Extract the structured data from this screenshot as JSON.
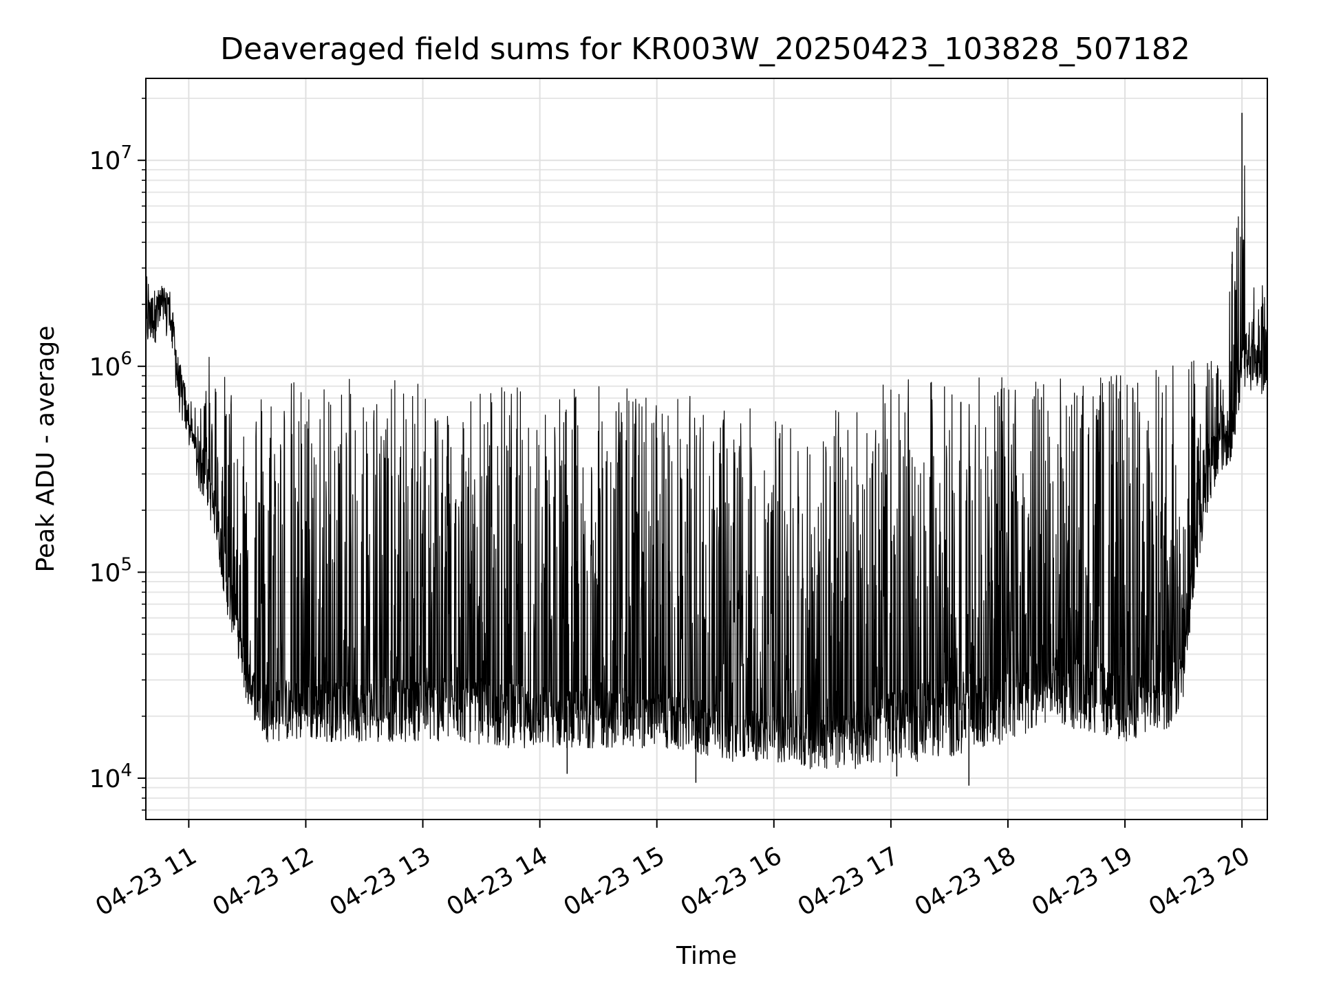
{
  "chart_data": {
    "type": "line",
    "title": "Deaveraged field sums for KR003W_20250423_103828_507182",
    "xlabel": "Time",
    "ylabel": "Peak ADU - average",
    "yscale": "log",
    "ylim": [
      6300,
      25000000
    ],
    "xlim": [
      "2025-04-23 10:38",
      "2025-04-23 20:13"
    ],
    "grid": true,
    "x_ticks": [
      "04-23 11",
      "04-23 12",
      "04-23 13",
      "04-23 14",
      "04-23 15",
      "04-23 16",
      "04-23 17",
      "04-23 18",
      "04-23 19",
      "04-23 20"
    ],
    "y_ticks": [
      {
        "value": 10000,
        "base": "10",
        "exp": "4"
      },
      {
        "value": 100000,
        "base": "10",
        "exp": "5"
      },
      {
        "value": 1000000,
        "base": "10",
        "exp": "6"
      },
      {
        "value": 10000000,
        "base": "10",
        "exp": "7"
      }
    ],
    "series": [
      {
        "line_color": "#000000",
        "envelope": {
          "x": [
            "10:38",
            "10:42",
            "10:50",
            "10:55",
            "11:00",
            "11:05",
            "11:10",
            "11:15",
            "11:20",
            "11:25",
            "11:30",
            "11:40",
            "11:50",
            "12:00",
            "12:20",
            "12:40",
            "13:00",
            "13:20",
            "13:40",
            "14:00",
            "14:20",
            "14:40",
            "15:00",
            "15:20",
            "15:40",
            "16:00",
            "16:20",
            "16:40",
            "17:00",
            "17:20",
            "17:40",
            "18:00",
            "18:20",
            "18:40",
            "19:00",
            "19:20",
            "19:25",
            "19:30",
            "19:35",
            "19:40",
            "19:45",
            "19:50",
            "19:55",
            "20:00",
            "20:05",
            "20:10",
            "20:13"
          ],
          "baseline": [
            1500000,
            1800000,
            1800000,
            800000,
            500000,
            350000,
            250000,
            170000,
            90000,
            50000,
            30000,
            25000,
            25000,
            25000,
            25000,
            25000,
            25000,
            25000,
            24000,
            23000,
            22000,
            22000,
            21000,
            20000,
            18000,
            17000,
            17000,
            18000,
            22000,
            24000,
            25000,
            27000,
            32000,
            30000,
            26000,
            25000,
            26000,
            40000,
            100000,
            200000,
            350000,
            450000,
            500000,
            1100000,
            1100000,
            1000000,
            950000
          ],
          "low": [
            1200000,
            1300000,
            1300000,
            600000,
            400000,
            250000,
            200000,
            120000,
            60000,
            40000,
            22000,
            15000,
            15000,
            15000,
            15000,
            15000,
            15000,
            15000,
            14000,
            14000,
            14000,
            14000,
            14000,
            13000,
            12000,
            12000,
            11000,
            11000,
            12000,
            12000,
            13000,
            15000,
            18000,
            17000,
            15000,
            17000,
            18000,
            25000,
            75000,
            150000,
            250000,
            300000,
            350000,
            800000,
            750000,
            700000,
            800000
          ],
          "high": [
            3000000,
            2500000,
            2500000,
            1100000,
            700000,
            600000,
            1200000,
            950000,
            920000,
            930000,
            920000,
            930000,
            930000,
            900000,
            880000,
            870000,
            860000,
            840000,
            850000,
            810000,
            800000,
            820000,
            790000,
            730000,
            650000,
            600000,
            550000,
            720000,
            850000,
            880000,
            880000,
            890000,
            910000,
            880000,
            980000,
            1000000,
            1050000,
            1150000,
            1250000,
            1350000,
            1450000,
            1250000,
            3600000,
            17000000,
            2500000,
            2500000,
            2600000
          ]
        },
        "events": [
          {
            "x": "19:55",
            "y": 3600000
          },
          {
            "x": "20:00",
            "y": 17000000
          },
          {
            "x": "15:20",
            "y": 9500
          },
          {
            "x": "17:40",
            "y": 9200
          },
          {
            "x": "14:14",
            "y": 10500
          },
          {
            "x": "17:03",
            "y": 10200
          }
        ]
      }
    ]
  }
}
